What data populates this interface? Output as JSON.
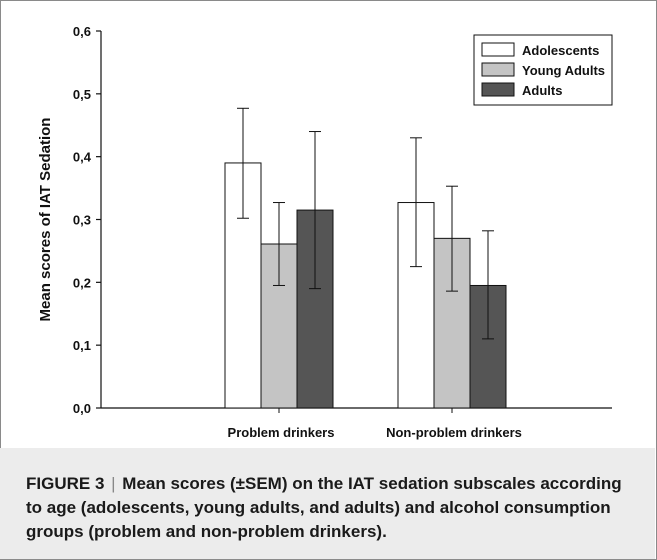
{
  "chart_data": {
    "type": "bar",
    "ylabel": "Mean scores of IAT Sedation",
    "ylim": [
      0,
      0.6
    ],
    "yticks": [
      "0,0",
      "0,1",
      "0,2",
      "0,3",
      "0,4",
      "0,5",
      "0,6"
    ],
    "categories": [
      "Problem drinkers",
      "Non-problem drinkers"
    ],
    "series": [
      {
        "name": "Adolescents",
        "values": [
          0.39,
          0.327
        ],
        "err_low": [
          0.302,
          0.225
        ],
        "err_high": [
          0.477,
          0.43
        ]
      },
      {
        "name": "Young Adults",
        "values": [
          0.261,
          0.27
        ],
        "err_low": [
          0.195,
          0.186
        ],
        "err_high": [
          0.327,
          0.353
        ]
      },
      {
        "name": "Adults",
        "values": [
          0.315,
          0.195
        ],
        "err_low": [
          0.19,
          0.11
        ],
        "err_high": [
          0.44,
          0.282
        ]
      }
    ],
    "legend_position": "top-right",
    "colors": [
      "#ffffff",
      "#c4c4c4",
      "#555555"
    ]
  },
  "caption": {
    "label": "FIGURE 3",
    "separator": "|",
    "text": "Mean scores (±SEM) on the IAT sedation subscales according to age (adolescents, young adults, and adults) and alcohol consumption groups (problem and non-problem drinkers)."
  }
}
